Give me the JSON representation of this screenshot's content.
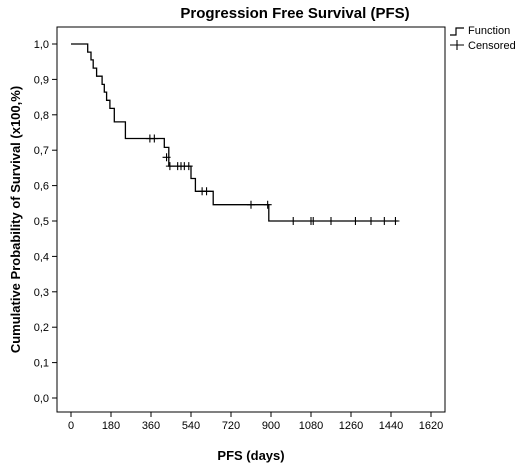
{
  "chart_data": {
    "type": "line",
    "subtype": "kaplan-meier-step",
    "title": "Progression Free Survival (PFS)",
    "xlabel": "PFS (days)",
    "ylabel": "Cumulative Probability of Survival (x100,%)",
    "xlim": [
      0,
      1620
    ],
    "ylim": [
      0,
      1.0
    ],
    "x_ticks": [
      0,
      180,
      360,
      540,
      720,
      900,
      1080,
      1260,
      1440,
      1620
    ],
    "x_tick_labels": [
      "0",
      "180",
      "360",
      "540",
      "720",
      "900",
      "1080",
      "1260",
      "1440",
      "1620"
    ],
    "y_ticks": [
      0,
      0.1,
      0.2,
      0.3,
      0.4,
      0.5,
      0.6,
      0.7,
      0.8,
      0.9,
      1.0
    ],
    "y_tick_labels": [
      "0,0",
      "0,1",
      "0,2",
      "0,3",
      "0,4",
      "0,5",
      "0,6",
      "0,7",
      "0,8",
      "0,9",
      "1,0"
    ],
    "grid": false,
    "legend_position": "top-right",
    "legend": [
      "Function",
      "Censored"
    ],
    "series": [
      {
        "name": "Function",
        "step_points": [
          [
            0,
            1.0
          ],
          [
            75,
            1.0
          ],
          [
            75,
            0.977
          ],
          [
            90,
            0.977
          ],
          [
            90,
            0.955
          ],
          [
            100,
            0.955
          ],
          [
            100,
            0.932
          ],
          [
            115,
            0.932
          ],
          [
            115,
            0.909
          ],
          [
            140,
            0.909
          ],
          [
            140,
            0.886
          ],
          [
            150,
            0.886
          ],
          [
            150,
            0.864
          ],
          [
            160,
            0.864
          ],
          [
            160,
            0.841
          ],
          [
            175,
            0.841
          ],
          [
            175,
            0.818
          ],
          [
            195,
            0.818
          ],
          [
            195,
            0.78
          ],
          [
            245,
            0.78
          ],
          [
            245,
            0.733
          ],
          [
            420,
            0.733
          ],
          [
            420,
            0.708
          ],
          [
            440,
            0.708
          ],
          [
            440,
            0.655
          ],
          [
            540,
            0.655
          ],
          [
            540,
            0.62
          ],
          [
            560,
            0.62
          ],
          [
            560,
            0.584
          ],
          [
            640,
            0.584
          ],
          [
            640,
            0.546
          ],
          [
            890,
            0.546
          ],
          [
            890,
            0.5
          ],
          [
            1470,
            0.5
          ]
        ]
      },
      {
        "name": "Censored",
        "points": [
          [
            355,
            0.733
          ],
          [
            375,
            0.733
          ],
          [
            430,
            0.68
          ],
          [
            445,
            0.655
          ],
          [
            480,
            0.655
          ],
          [
            495,
            0.655
          ],
          [
            510,
            0.655
          ],
          [
            530,
            0.655
          ],
          [
            590,
            0.584
          ],
          [
            610,
            0.584
          ],
          [
            810,
            0.546
          ],
          [
            885,
            0.546
          ],
          [
            1000,
            0.5
          ],
          [
            1080,
            0.5
          ],
          [
            1090,
            0.5
          ],
          [
            1170,
            0.5
          ],
          [
            1280,
            0.5
          ],
          [
            1350,
            0.5
          ],
          [
            1410,
            0.5
          ],
          [
            1460,
            0.5
          ]
        ]
      }
    ]
  }
}
